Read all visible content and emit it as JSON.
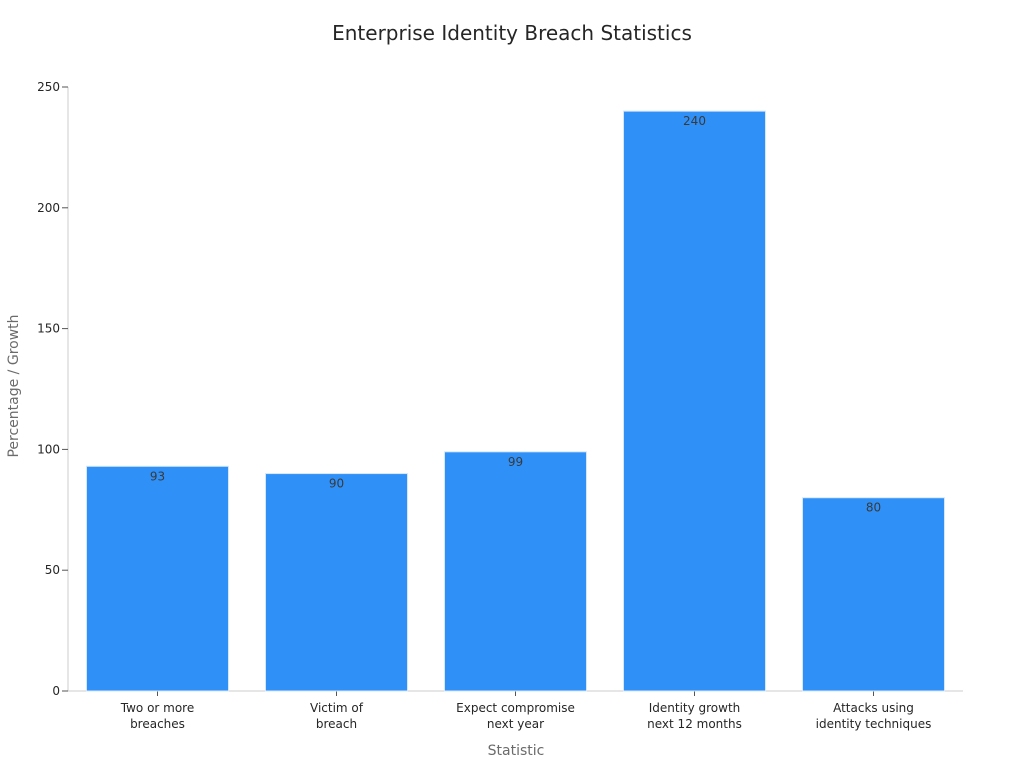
{
  "chart_data": {
    "type": "bar",
    "title": "Enterprise Identity Breach Statistics",
    "xlabel": "Statistic",
    "ylabel": "Percentage / Growth",
    "categories": [
      [
        "Two or more",
        "breaches"
      ],
      [
        "Victim of",
        "breach"
      ],
      [
        "Expect compromise",
        "next year"
      ],
      [
        "Identity growth",
        "next 12 months"
      ],
      [
        "Attacks using",
        "identity techniques"
      ]
    ],
    "values": [
      93,
      90,
      99,
      240,
      80
    ],
    "value_labels": [
      "93",
      "90",
      "99",
      "240",
      "80"
    ],
    "ylim": [
      0,
      250
    ],
    "yticks": [
      0,
      50,
      100,
      150,
      200,
      250
    ],
    "ytick_labels": [
      "0",
      "50",
      "100",
      "150",
      "200",
      "250"
    ],
    "grid": false,
    "legend": "none",
    "bar_color": "#2f91f8"
  }
}
